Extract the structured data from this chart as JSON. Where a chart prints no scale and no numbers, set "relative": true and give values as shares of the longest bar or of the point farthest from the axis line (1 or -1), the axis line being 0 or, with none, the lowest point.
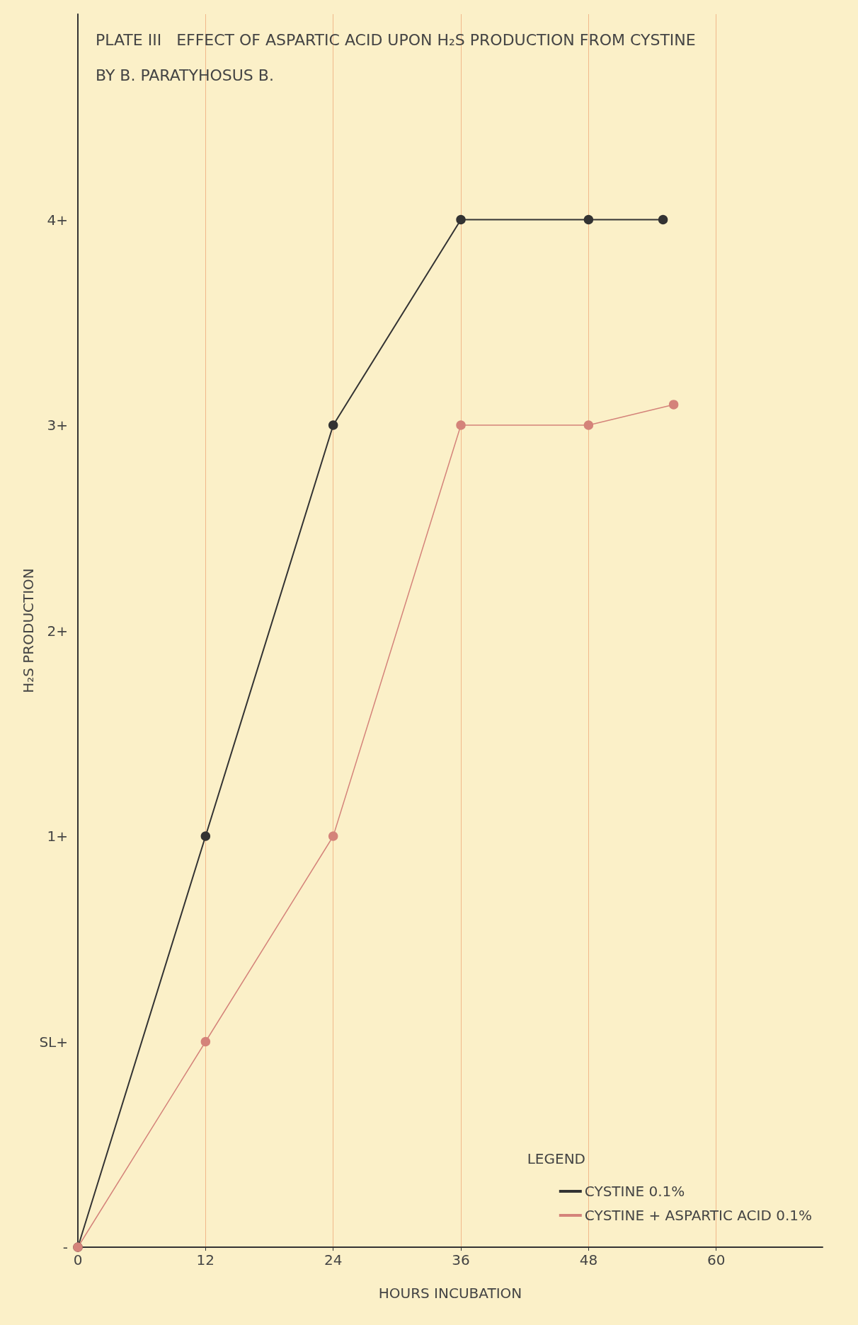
{
  "chart_data": {
    "type": "line",
    "relative": true,
    "title": "PLATE III   EFFECT OF ASPARTIC ACID UPON H₂S PRODUCTION FROM CYSTINE",
    "subtitle": "BY B. PARATYHOSUS B.",
    "xlabel": "HOURS INCUBATION",
    "ylabel": "H₂S PRODUCTION",
    "legend_title": "LEGEND",
    "annotations": [
      "-",
      "SL+",
      "1+",
      "2+",
      "3+",
      "4+"
    ],
    "series": [
      {
        "name": "CYSTINE 0.1%",
        "color": "#333333",
        "x": [
          0,
          12,
          24,
          36,
          48,
          55
        ],
        "values": [
          0,
          0.4,
          0.8,
          1,
          1,
          1
        ]
      },
      {
        "name": "CYSTINE + ASPARTIC ACID 0.1%",
        "color": "#d4837a",
        "x": [
          0,
          12,
          24,
          36,
          48,
          56
        ],
        "values": [
          0,
          0.2,
          0.4,
          0.8,
          0.8,
          0.82
        ]
      }
    ],
    "xlim": [
      0,
      70
    ],
    "xticks": [
      0,
      12,
      24,
      36,
      48,
      60
    ],
    "grid": "x",
    "legend": "bottom right",
    "marker": "circle",
    "line_style": "solid"
  }
}
